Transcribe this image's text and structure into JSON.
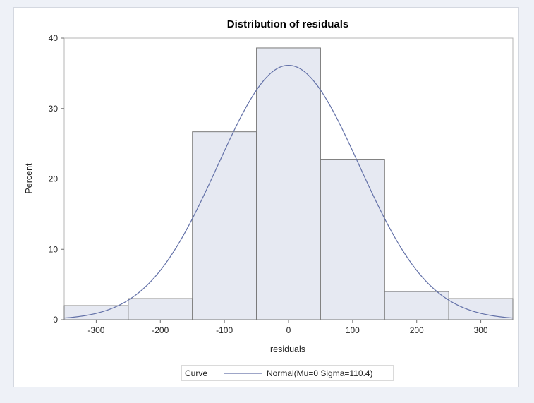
{
  "chart_data": {
    "type": "histogram",
    "title": "Distribution of residuals",
    "xlabel": "residuals",
    "ylabel": "Percent",
    "xlim": [
      -350,
      350
    ],
    "ylim": [
      0,
      40
    ],
    "xticks": [
      -300,
      -200,
      -100,
      0,
      100,
      200,
      300
    ],
    "yticks": [
      0,
      10,
      20,
      30,
      40
    ],
    "bins": [
      {
        "start": -350,
        "end": -250,
        "percent": 2.0
      },
      {
        "start": -250,
        "end": -150,
        "percent": 3.0
      },
      {
        "start": -150,
        "end": -50,
        "percent": 26.7
      },
      {
        "start": -50,
        "end": 50,
        "percent": 38.6
      },
      {
        "start": 50,
        "end": 150,
        "percent": 22.8
      },
      {
        "start": 150,
        "end": 250,
        "percent": 4.0
      },
      {
        "start": 250,
        "end": 350,
        "percent": 3.0
      }
    ],
    "curve": {
      "type": "normal",
      "mu": 0,
      "sigma": 110.4,
      "bin_width": 100,
      "legend_label": "Normal(Mu=0 Sigma=110.4)"
    },
    "legend": {
      "title": "Curve",
      "placement": "bottom-center",
      "entries": [
        "Normal(Mu=0 Sigma=110.4)"
      ]
    },
    "colors": {
      "bar_fill": "#e6e9f2",
      "bar_stroke": "#7a7a7a",
      "curve": "#6371a8",
      "frame": "#b4b4b4"
    },
    "grid": false
  }
}
